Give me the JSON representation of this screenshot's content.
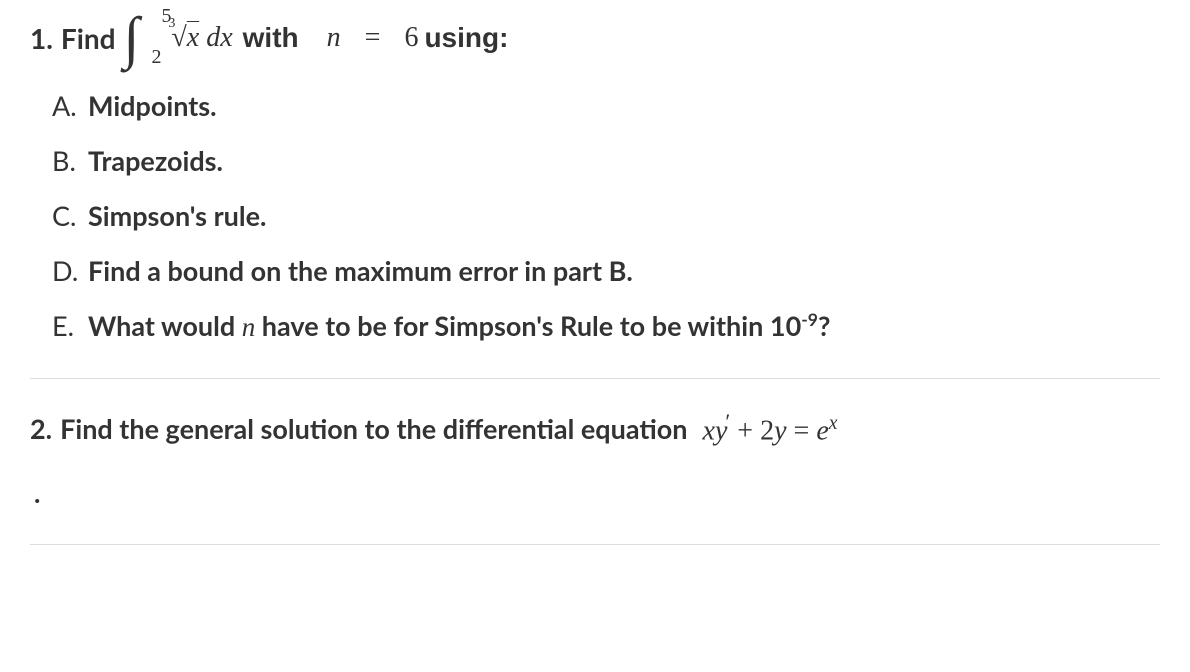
{
  "problem1": {
    "number": "1.",
    "find_text": "Find",
    "integral": {
      "upper": "5",
      "lower": "2",
      "root_index": "3",
      "radicand": "x",
      "differential": "dx"
    },
    "with_text": "with",
    "n_var": "n",
    "equals": " = ",
    "n_value": "6",
    "using_text": "using:",
    "items": [
      {
        "letter": "A.",
        "text": "Midpoints."
      },
      {
        "letter": "B.",
        "text": "Trapezoids."
      },
      {
        "letter": "C.",
        "text": "Simpson's rule."
      },
      {
        "letter": "D.",
        "text": "Find a bound on the maximum error in part B."
      },
      {
        "letter": "E.",
        "text_prefix": "What would ",
        "n_var": "n",
        "text_mid": " have to be for Simpson's Rule to be within 10",
        "exponent": "-9",
        "text_suffix": "?"
      }
    ]
  },
  "problem2": {
    "number": "2.",
    "text": "Find the general solution to the differential equation",
    "equation": {
      "lhs_x": "x",
      "lhs_y": "y",
      "prime": "′",
      "plus": " + ",
      "coeff": "2",
      "y2": "y",
      "equals": " = ",
      "e": "e",
      "exp": "x"
    }
  },
  "colors": {
    "text": "#333333",
    "background": "#ffffff",
    "divider": "#dddddd"
  }
}
